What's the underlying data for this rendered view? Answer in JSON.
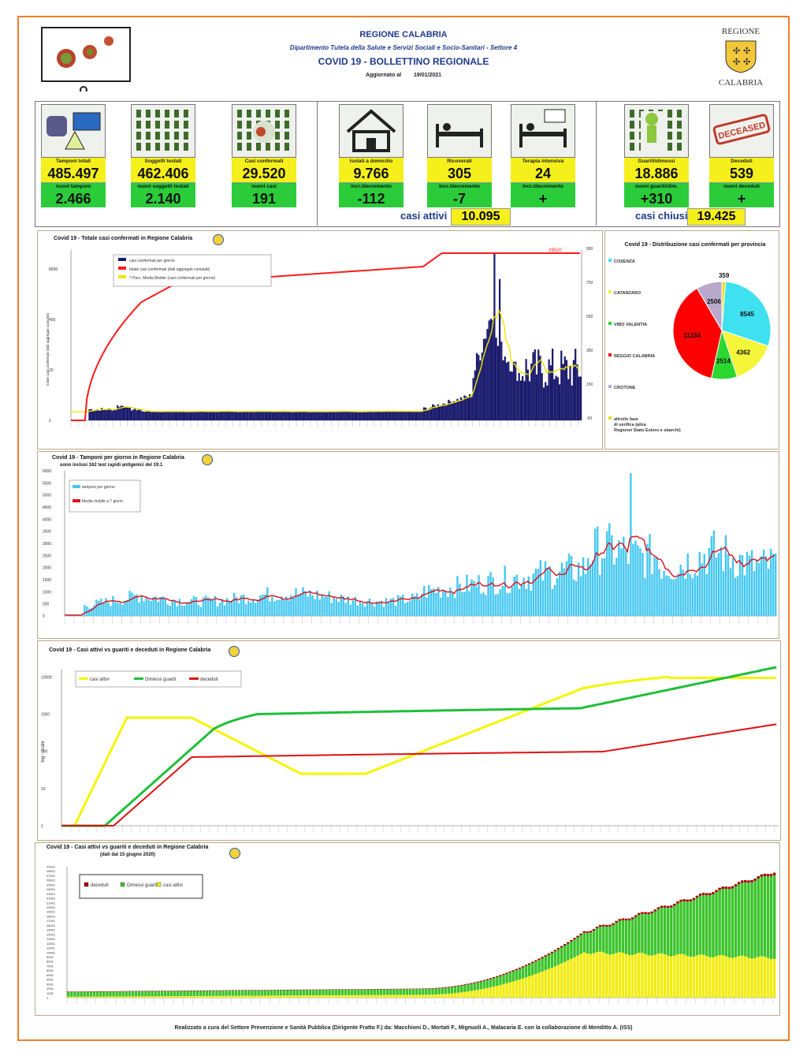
{
  "header": {
    "region": "REGIONE CALABRIA",
    "department": "Dipartimento Tutela della Salute e Servizi Sociali e Socio-Sanitari - Settore 4",
    "title": "COVID 19 - BOLLETTINO REGIONALE",
    "updated_label": "Aggiornato al",
    "updated_date": "19/01/2021",
    "logo_top": "REGIONE",
    "logo_bottom": "CALABRIA"
  },
  "cards": [
    {
      "label": "Tamponi totali",
      "value": "485.497",
      "sub_label": "nuovi tamponi",
      "sub_value": "2.466",
      "icon": "lab-icon"
    },
    {
      "label": "Soggetti testati",
      "value": "462.406",
      "sub_label": "nuovi soggetti testati",
      "sub_value": "2.140",
      "icon": "people-grid-icon"
    },
    {
      "label": "Casi confermati",
      "value": "29.520",
      "sub_label": "nuovi casi",
      "sub_value": "191",
      "icon": "virus-person-icon"
    },
    {
      "label": "Isolati a domicilio",
      "value": "9.766",
      "sub_label": "incr./decremento",
      "sub_value": "-112",
      "icon": "house-icon"
    },
    {
      "label": "Ricoverati",
      "value": "305",
      "sub_label": "incr./decremento",
      "sub_value": "-7",
      "icon": "hospital-bed-icon"
    },
    {
      "label": "Terapia intensiva",
      "value": "24",
      "sub_label": "incr./decremento",
      "sub_value": "+",
      "icon": "icu-bed-icon"
    },
    {
      "label": "Guariti/dimessi",
      "value": "18.886",
      "sub_label": "nuovi guariti/dim.",
      "sub_value": "+310",
      "icon": "recovered-icon"
    },
    {
      "label": "Deceduti",
      "value": "539",
      "sub_label": "nuovi deceduti",
      "sub_value": "+",
      "icon": "deceased-stamp-icon"
    }
  ],
  "deceased_stamp": "DECEASED",
  "active_cases": {
    "label": "casi attivi",
    "value": "10.095"
  },
  "closed_cases": {
    "label": "casi chiusi",
    "value": "19.425"
  },
  "colors": {
    "frame": "#f07d2a",
    "title": "#1f3a8a",
    "yellow": "#f5ef1c",
    "green": "#2bcc39",
    "navy": "#1a1a6e",
    "red": "#ff0000",
    "cyan": "#3fd0f0"
  },
  "chart_data": [
    {
      "type": "bar",
      "title": "Covid 19 - Totale casi confermati in Regione Calabria",
      "ylabel": "totale casi confermati (dati aggregati cumulati)",
      "y2label": "casi confermati per giorno",
      "left_ticks": [
        "8000",
        "400",
        "20",
        "1"
      ],
      "right_ticks": [
        "950",
        "750",
        "550",
        "350",
        "150",
        "-50"
      ],
      "end_annotation": "29520",
      "legend": [
        "casi confermati per giorno",
        "totale casi confermati (dati aggregati cumulati)",
        "7 Perc. Media Mobile (casi confermati per giorno)"
      ],
      "ylim_right": [
        -50,
        950
      ]
    },
    {
      "type": "pie",
      "title": "Covid 19 - Distribuzione casi confermati per provincia",
      "slices": [
        {
          "label": "COSENZA",
          "value": 8545,
          "color": "#3fe0f0"
        },
        {
          "label": "CATANZARO",
          "value": 4362,
          "color": "#f5f53a"
        },
        {
          "label": "VIBO VALENTIA",
          "value": 2514,
          "color": "#2bd830"
        },
        {
          "label": "REGGIO CALABRIA",
          "value": 11234,
          "color": "#ff0000"
        },
        {
          "label": "CROTONE",
          "value": 2506,
          "color": "#b8a8cc"
        },
        {
          "label": "altro/in fase di verifica (altra Regione/ Stato Estero e sbarchi)",
          "value": 359,
          "color": "#e8e020"
        }
      ]
    },
    {
      "type": "bar",
      "title": "Covid 19 - Tamponi per giorno in Regione Calabria",
      "subtitle": "sono inclusi 162 test rapidi antigenici del 19.1",
      "y_ticks": [
        "6000",
        "5500",
        "5000",
        "4500",
        "4000",
        "3500",
        "3000",
        "2500",
        "2000",
        "1500",
        "1000",
        "500",
        "0"
      ],
      "legend": [
        "tamponi per giorno",
        "Media mobile a 7 giorni"
      ],
      "ylim": [
        0,
        6000
      ]
    },
    {
      "type": "line",
      "title": "Covid 19 - Casi attivi vs guariti e deceduti in Regione Calabria",
      "ylabel": "log - scale",
      "y_ticks": [
        "10000",
        "1000",
        "100",
        "10",
        "1"
      ],
      "legend": [
        "casi attivi",
        "Dimessi guariti",
        "deceduti"
      ],
      "log_scale": true
    },
    {
      "type": "area",
      "title": "Covid 19 - Casi attivi vs guariti e deceduti in Regione Calabria",
      "subtitle": "(dati dal 15 giugno 2020)",
      "y_ticks": [
        "29001",
        "28001",
        "27001",
        "26001",
        "25001",
        "24001",
        "23001",
        "22001",
        "21001",
        "20001",
        "19001",
        "18001",
        "17001",
        "16001",
        "15001",
        "14001",
        "13001",
        "12001",
        "11001",
        "10001",
        "9001",
        "8001",
        "7001",
        "6001",
        "5001",
        "4001",
        "3001",
        "2001",
        "1001",
        "1"
      ],
      "legend": [
        "deceduti",
        "Dimessi guariti",
        "casi attivi"
      ]
    }
  ],
  "footer": "Realizzato a cura del Settore Prevenzione e Sanità Pubblica (Dirigente Fratto F.) da: Macchioni D., Mortati F., Mignuoli A., Malacaria E. con la collaborazione di Menditto A. (ISS)"
}
